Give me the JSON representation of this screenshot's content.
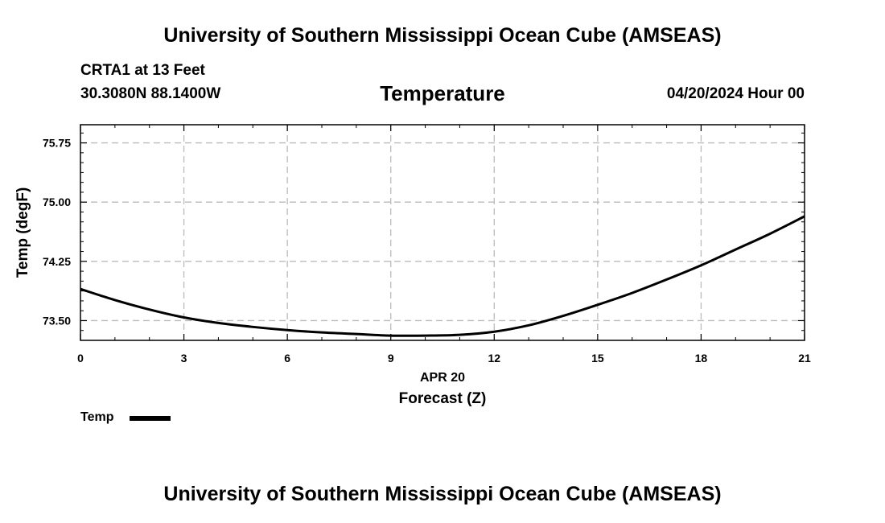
{
  "header": {
    "top_title": "University of Southern Mississippi Ocean Cube (AMSEAS)",
    "station": "CRTA1 at 13 Feet",
    "location": "30.3080N  88.1400W",
    "datetime": "04/20/2024 Hour 00",
    "bottom_title": "University of Southern Mississippi Ocean Cube (AMSEAS)"
  },
  "chart_data": {
    "type": "line",
    "title": "Temperature",
    "xlabel": "Forecast (Z)",
    "xlabel_date": "APR 20",
    "ylabel": "Temp (degF)",
    "xlim": [
      0,
      21
    ],
    "ylim": [
      73.25,
      75.98
    ],
    "xticks": [
      "0",
      "3",
      "6",
      "9",
      "12",
      "15",
      "18",
      "21"
    ],
    "yticks": [
      "73.50",
      "74.25",
      "75.00",
      "75.75"
    ],
    "grid": true,
    "legend_position": "bottom-left",
    "series": [
      {
        "name": "Temp",
        "color": "#000000",
        "x": [
          0,
          1,
          2,
          3,
          4,
          5,
          6,
          7,
          8,
          9,
          10,
          11,
          12,
          13,
          14,
          15,
          16,
          17,
          18,
          19,
          20,
          21
        ],
        "values": [
          73.9,
          73.76,
          73.64,
          73.54,
          73.47,
          73.42,
          73.38,
          73.35,
          73.33,
          73.31,
          73.31,
          73.32,
          73.36,
          73.44,
          73.56,
          73.7,
          73.85,
          74.02,
          74.2,
          74.4,
          74.6,
          74.82
        ]
      }
    ]
  }
}
